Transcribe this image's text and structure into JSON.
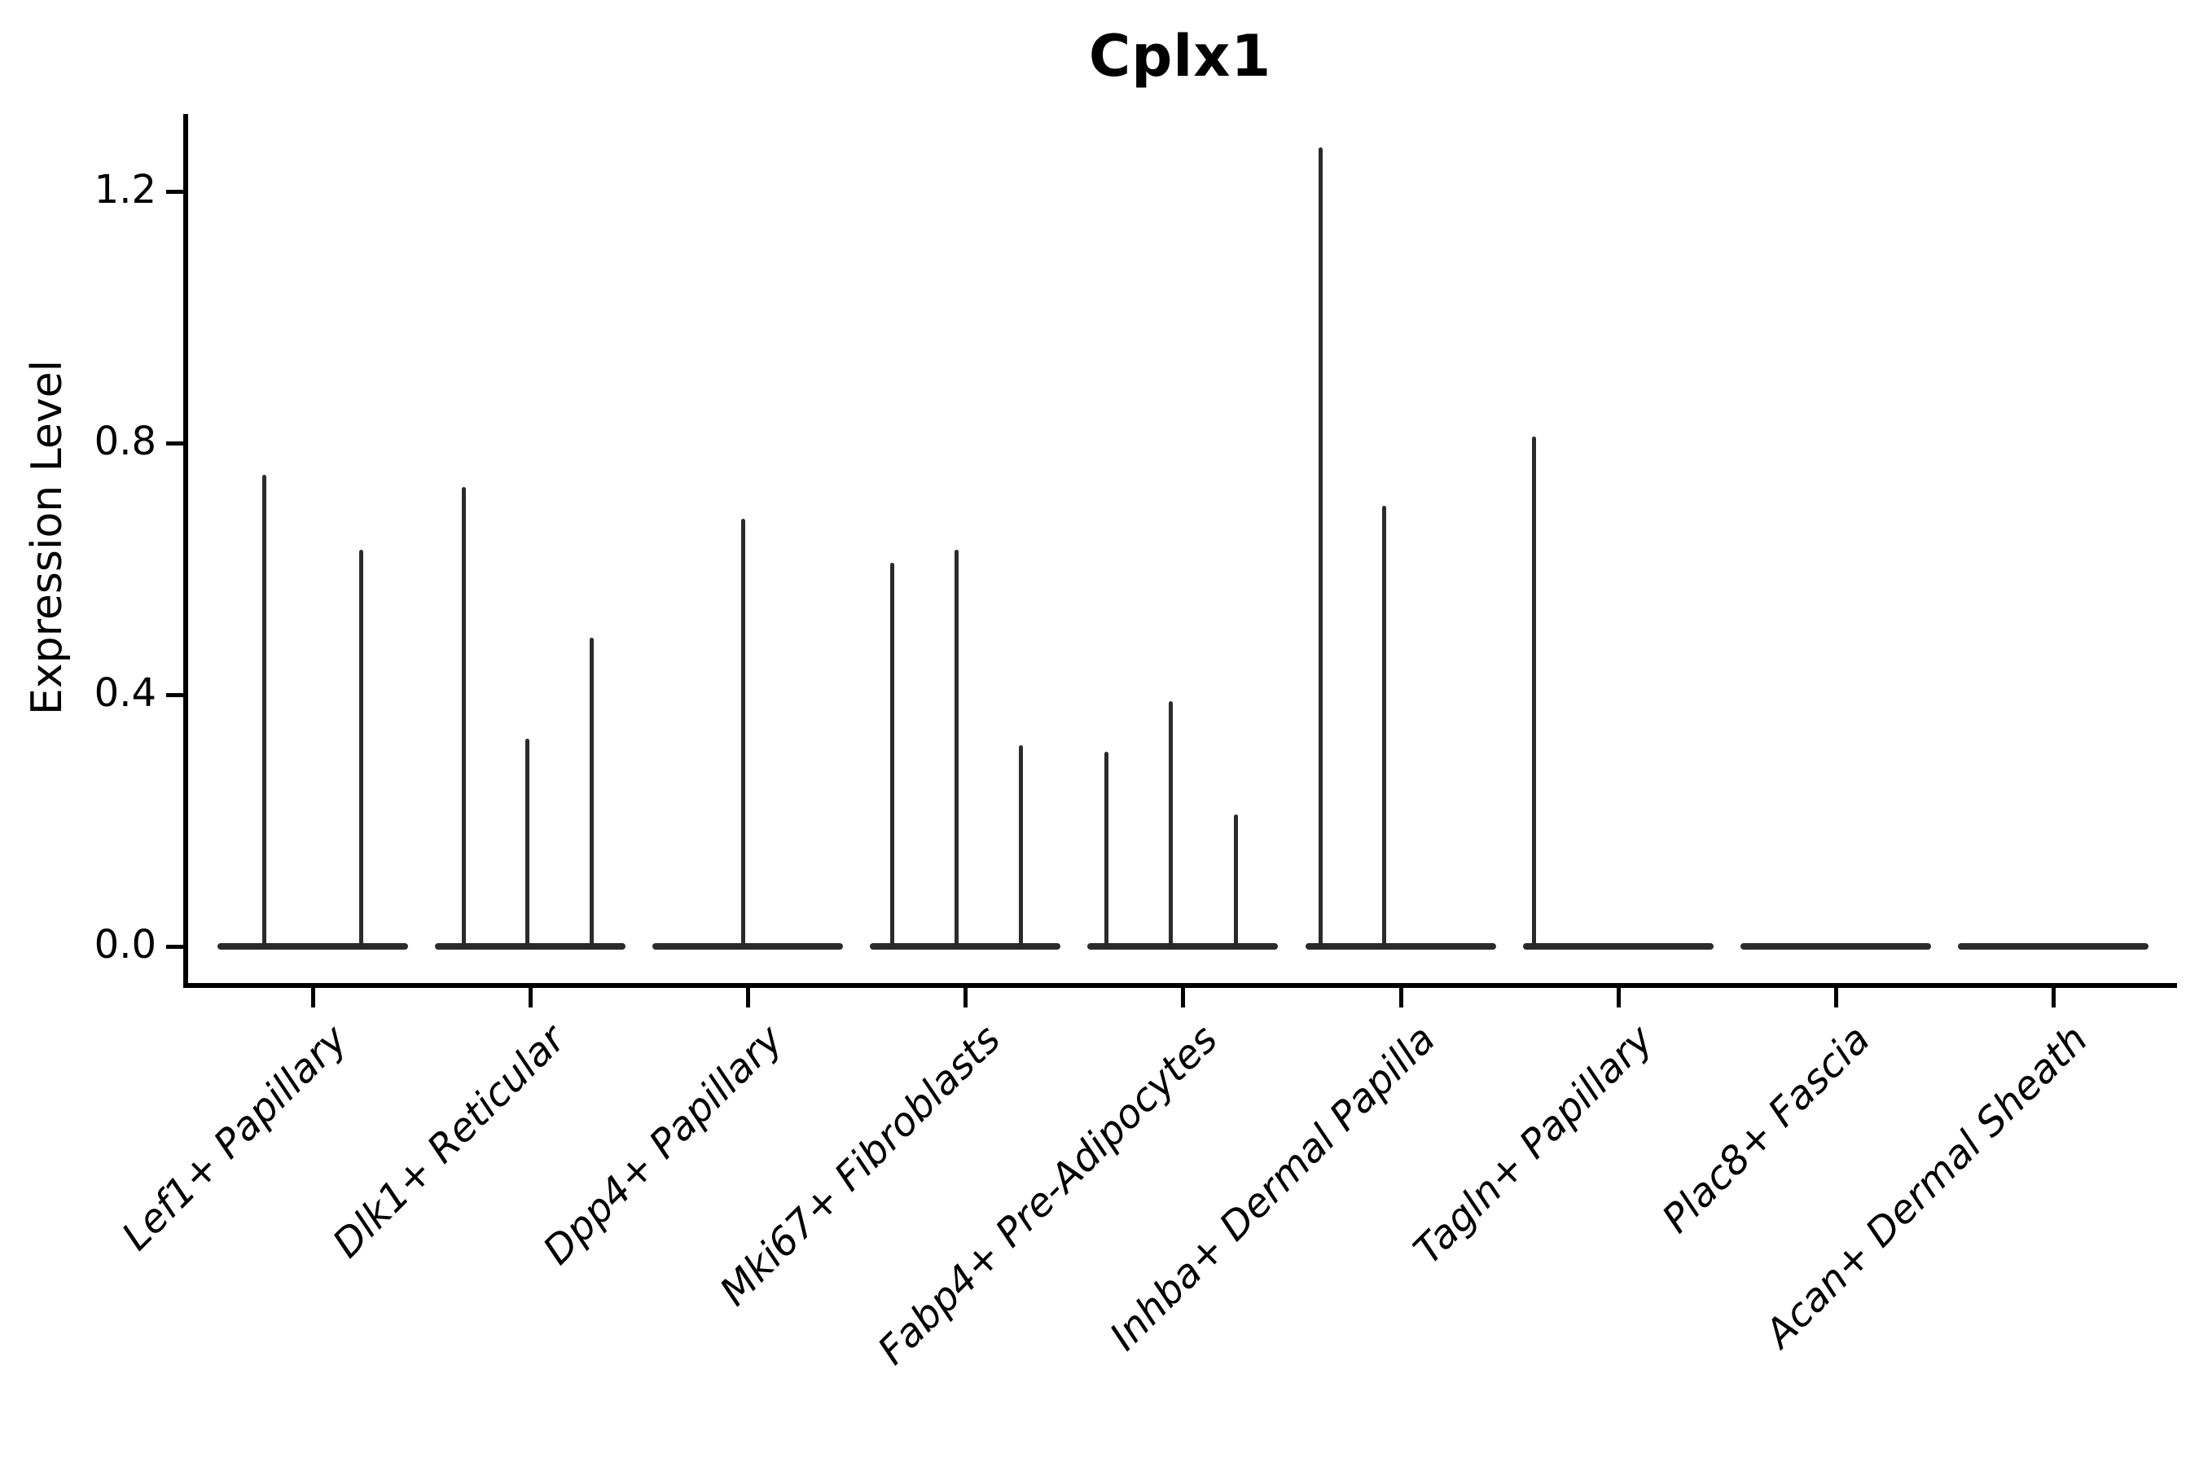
{
  "colors": {
    "violin": "#2b2b2b",
    "axis": "#000000",
    "text": "#000000",
    "background": "#ffffff"
  },
  "chart_data": {
    "type": "violin",
    "title": "Cplx1",
    "xlabel": "",
    "ylabel": "Expression Level",
    "ytick_labels": [
      "0.0",
      "0.4",
      "0.8",
      "1.2"
    ],
    "ytick_values": [
      0.0,
      0.4,
      0.8,
      1.2
    ],
    "ylim": [
      -0.06,
      1.32
    ],
    "grid": false,
    "legend_position": "none",
    "x_tick_rotation_deg": 45,
    "categories": [
      "Lef1+ Papillary",
      "Dlk1+ Reticular",
      "Dpp4+ Papillary",
      "Mki67+ Fibroblasts",
      "Fabp4+ Pre-Adipocytes",
      "Inhba+ Dermal Papilla",
      "Tagln+ Papillary",
      "Plac8+ Fascia",
      "Acan+ Dermal Sheath"
    ],
    "violins": [
      {
        "category": "Lef1+ Papillary",
        "baseline_value": 0.0,
        "spikes": [
          {
            "offset": -0.221,
            "value": 0.75
          },
          {
            "offset": 0.221,
            "value": 0.63
          }
        ]
      },
      {
        "category": "Dlk1+ Reticular",
        "baseline_value": 0.0,
        "spikes": [
          {
            "offset": -0.307,
            "value": 0.73
          },
          {
            "offset": -0.015,
            "value": 0.33
          },
          {
            "offset": 0.284,
            "value": 0.49
          }
        ]
      },
      {
        "category": "Dpp4+ Papillary",
        "baseline_value": 0.0,
        "spikes": [
          {
            "offset": -0.022,
            "value": 0.68
          }
        ]
      },
      {
        "category": "Mki67+ Fibroblasts",
        "baseline_value": 0.0,
        "spikes": [
          {
            "offset": -0.337,
            "value": 0.61
          },
          {
            "offset": -0.041,
            "value": 0.63
          },
          {
            "offset": 0.254,
            "value": 0.32
          }
        ]
      },
      {
        "category": "Fabp4+ Pre-Adipocytes",
        "baseline_value": 0.0,
        "spikes": [
          {
            "offset": -0.352,
            "value": 0.31
          },
          {
            "offset": -0.056,
            "value": 0.39
          },
          {
            "offset": 0.243,
            "value": 0.21
          }
        ]
      },
      {
        "category": "Inhba+ Dermal Papilla",
        "baseline_value": 0.0,
        "spikes": [
          {
            "offset": -0.367,
            "value": 1.27
          },
          {
            "offset": -0.075,
            "value": 0.7
          }
        ]
      },
      {
        "category": "Tagln+ Papillary",
        "baseline_value": 0.0,
        "spikes": [
          {
            "offset": -0.385,
            "value": 0.81
          }
        ]
      },
      {
        "category": "Plac8+ Fascia",
        "baseline_value": 0.0,
        "spikes": []
      },
      {
        "category": "Acan+ Dermal Sheath",
        "baseline_value": 0.0,
        "spikes": []
      }
    ]
  }
}
